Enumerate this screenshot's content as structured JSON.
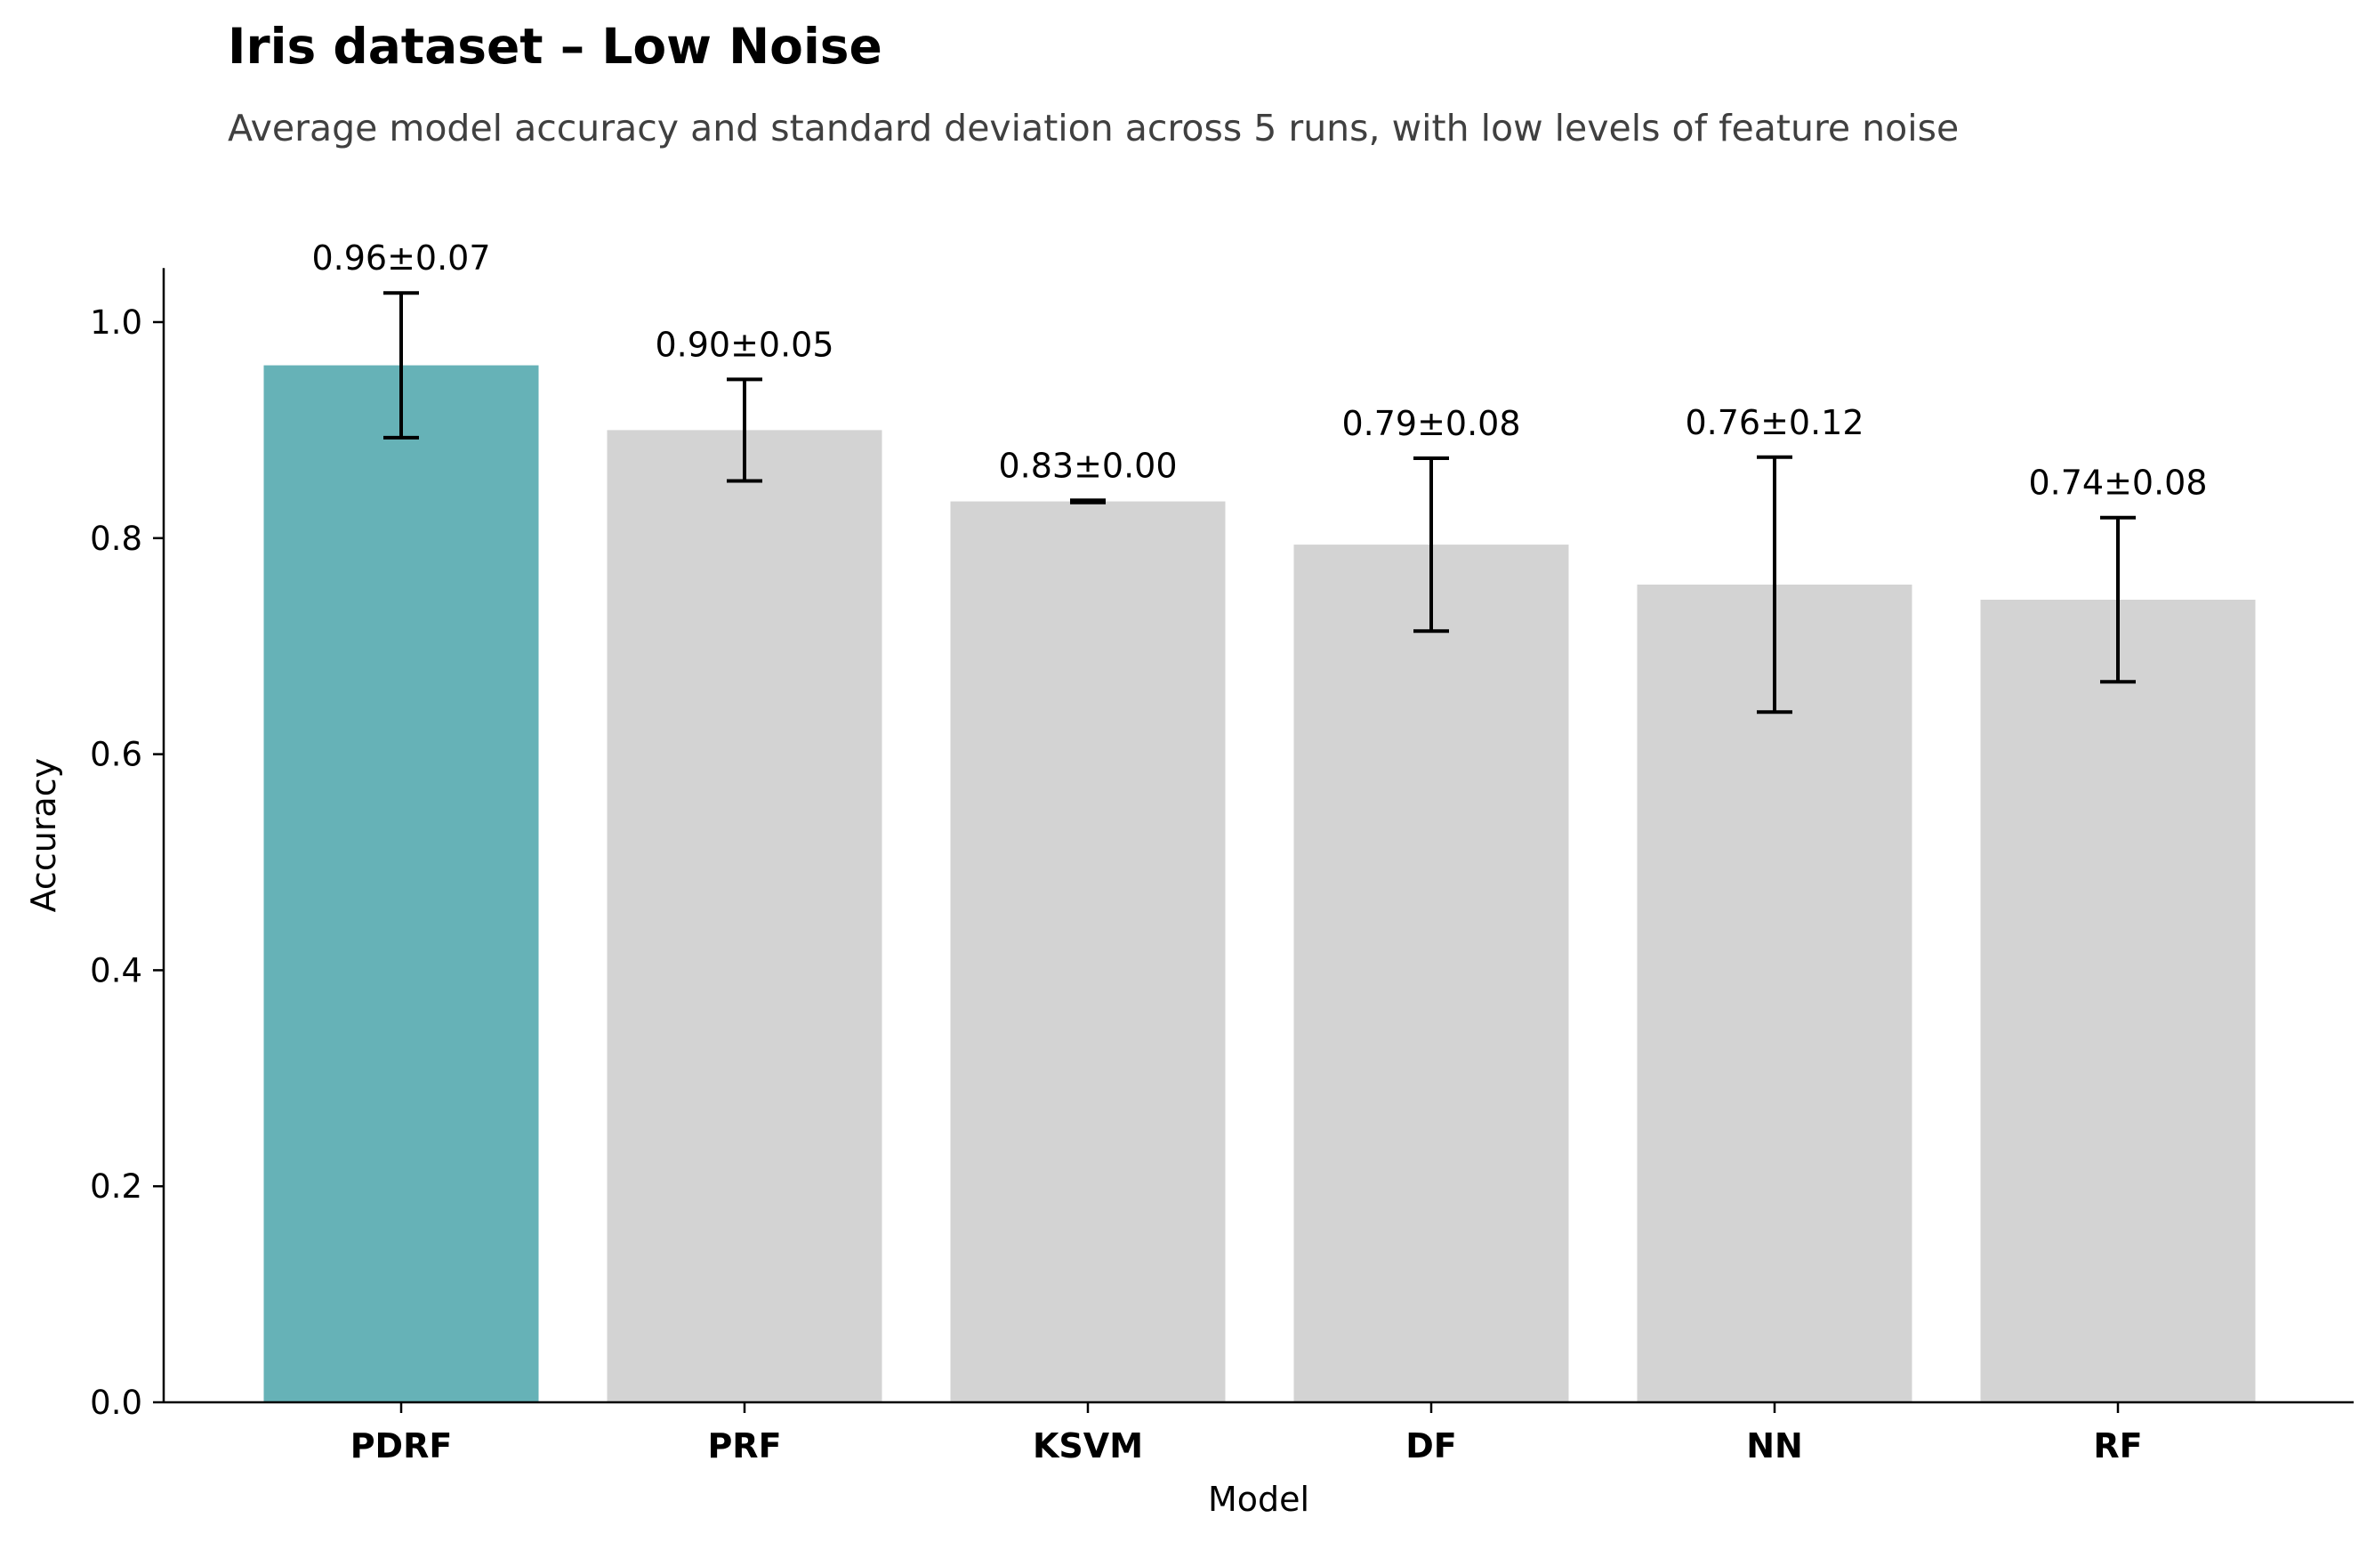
{
  "chart_data": {
    "type": "bar",
    "title": "Iris dataset – Low Noise",
    "subtitle": "Average model accuracy and standard deviation across 5 runs, with low levels of feature noise",
    "xlabel": "Model",
    "ylabel": "Accuracy",
    "ylim": [
      0,
      1.05
    ],
    "yticks": [
      "0.0",
      "0.2",
      "0.4",
      "0.6",
      "0.8",
      "1.0"
    ],
    "grid": false,
    "categories": [
      "PDRF",
      "PRF",
      "KSVM",
      "DF",
      "NN",
      "RF"
    ],
    "values": [
      0.96,
      0.9,
      0.834,
      0.794,
      0.757,
      0.743
    ],
    "errors": [
      0.067,
      0.047,
      0.001,
      0.08,
      0.118,
      0.076
    ],
    "data_labels": [
      "0.96±0.07",
      "0.90±0.05",
      "0.83±0.00",
      "0.79±0.08",
      "0.76±0.12",
      "0.74±0.08"
    ],
    "colors": {
      "highlight": "#66b2b7",
      "default": "#d3d3d3",
      "error_bar": "#000000"
    },
    "highlight_index": 0
  }
}
